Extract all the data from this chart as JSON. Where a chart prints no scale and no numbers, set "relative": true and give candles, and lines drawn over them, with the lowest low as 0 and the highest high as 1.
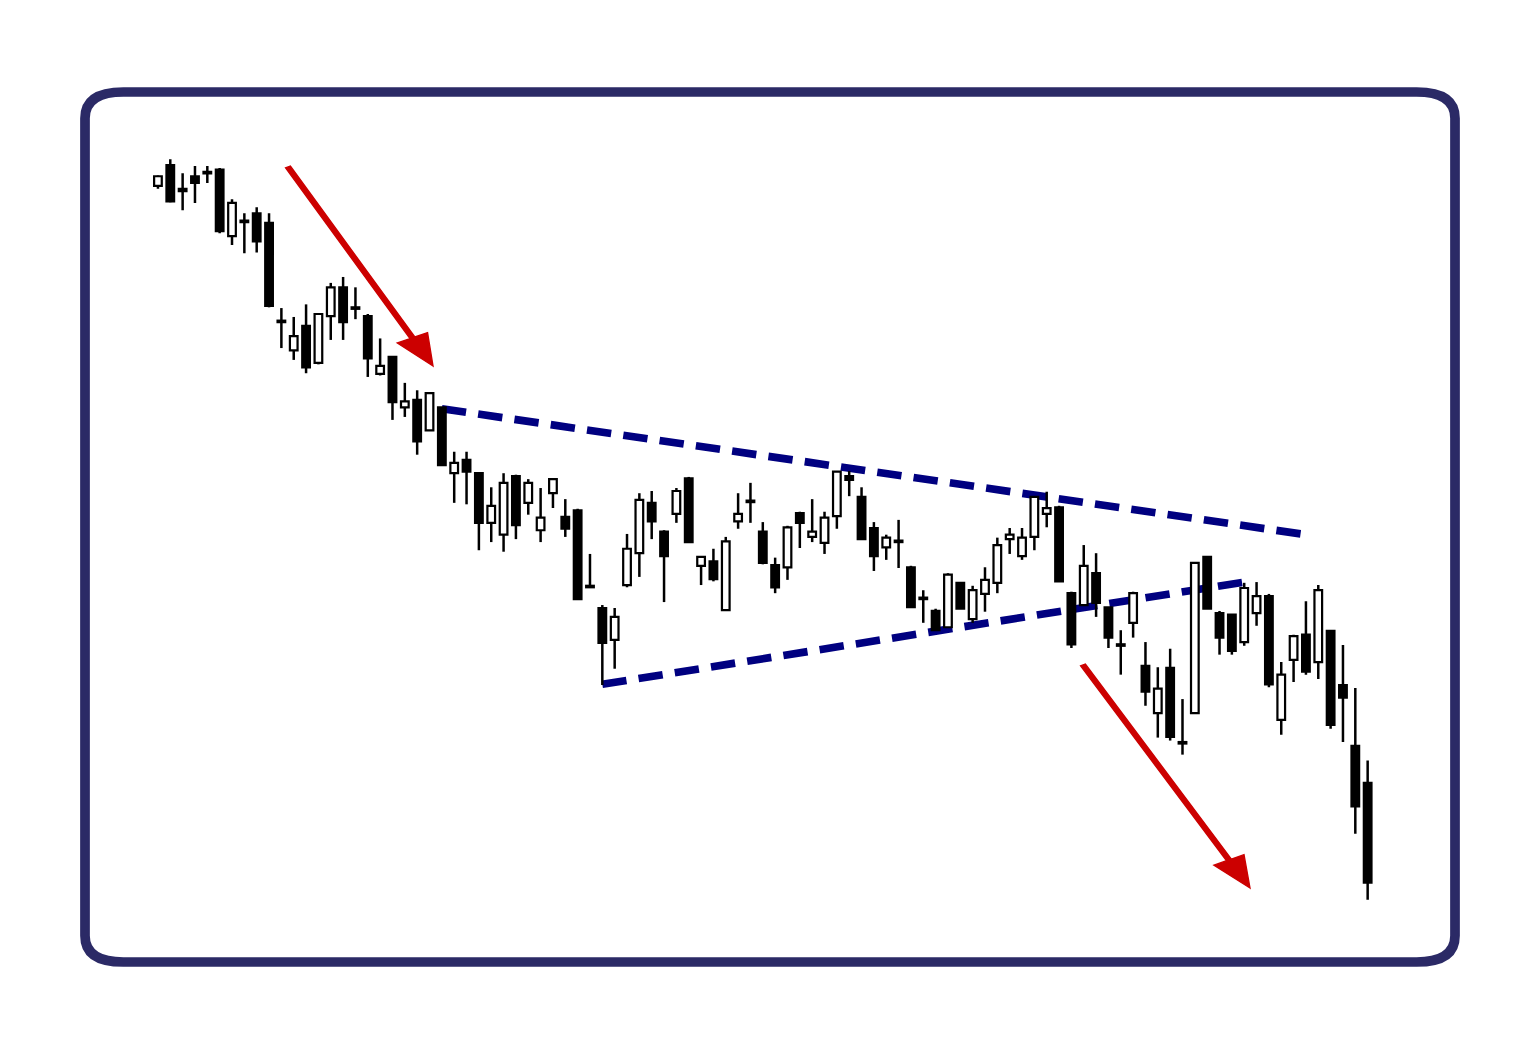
{
  "chart_data": {
    "type": "candlestick",
    "relative": true,
    "tick_labels": false,
    "legend": false,
    "categories": [
      null,
      null,
      null,
      null,
      null,
      null,
      null,
      null,
      null,
      null,
      null,
      null,
      null,
      null,
      null,
      null,
      null,
      null,
      null,
      null,
      null,
      null,
      null,
      null,
      null,
      null,
      null,
      null,
      null,
      null,
      null,
      null,
      null,
      null,
      null,
      null,
      null,
      null,
      null,
      null,
      null,
      null,
      null,
      null,
      null,
      null,
      null,
      null,
      null,
      null,
      null,
      null,
      null,
      null,
      null,
      null,
      null,
      null,
      null,
      null,
      null,
      null,
      null,
      null,
      null,
      null,
      null,
      null,
      null,
      null,
      null,
      null,
      null,
      null,
      null,
      null,
      null,
      null,
      null,
      null,
      null,
      null,
      null,
      null,
      null,
      null,
      null,
      null,
      null,
      null,
      null,
      null,
      null,
      null,
      null,
      null,
      null,
      null,
      null
    ],
    "ohlc": [
      [
        0.964,
        0.978,
        0.96,
        0.977
      ],
      [
        0.992,
        1.0,
        0.942,
        0.943
      ],
      [
        0.96,
        0.981,
        0.931,
        0.957
      ],
      [
        0.977,
        0.991,
        0.941,
        0.968
      ],
      [
        0.981,
        0.991,
        0.968,
        0.982
      ],
      [
        0.986,
        0.988,
        0.9,
        0.903
      ],
      [
        0.896,
        0.946,
        0.884,
        0.941
      ],
      [
        0.915,
        0.927,
        0.873,
        0.916
      ],
      [
        0.927,
        0.935,
        0.874,
        0.889
      ],
      [
        0.914,
        0.927,
        0.8,
        0.802
      ],
      [
        0.781,
        0.799,
        0.745,
        0.78
      ],
      [
        0.742,
        0.787,
        0.729,
        0.761
      ],
      [
        0.775,
        0.804,
        0.711,
        0.719
      ],
      [
        0.725,
        0.791,
        0.723,
        0.791
      ],
      [
        0.788,
        0.833,
        0.756,
        0.827
      ],
      [
        0.827,
        0.841,
        0.756,
        0.78
      ],
      [
        0.799,
        0.827,
        0.784,
        0.798
      ],
      [
        0.788,
        0.791,
        0.706,
        0.731
      ],
      [
        0.71,
        0.758,
        0.708,
        0.721
      ],
      [
        0.733,
        0.734,
        0.648,
        0.672
      ],
      [
        0.665,
        0.698,
        0.652,
        0.673
      ],
      [
        0.675,
        0.688,
        0.601,
        0.619
      ],
      [
        0.634,
        0.684,
        0.634,
        0.684
      ],
      [
        0.665,
        0.665,
        0.587,
        0.587
      ],
      [
        0.576,
        0.605,
        0.536,
        0.59
      ],
      [
        0.594,
        0.605,
        0.534,
        0.578
      ],
      [
        0.576,
        0.576,
        0.472,
        0.509
      ],
      [
        0.509,
        0.557,
        0.483,
        0.532
      ],
      [
        0.493,
        0.576,
        0.47,
        0.563
      ],
      [
        0.572,
        0.574,
        0.487,
        0.506
      ],
      [
        0.536,
        0.568,
        0.52,
        0.563
      ],
      [
        0.499,
        0.556,
        0.483,
        0.516
      ],
      [
        0.549,
        0.569,
        0.529,
        0.568
      ],
      [
        0.517,
        0.541,
        0.49,
        0.501
      ],
      [
        0.526,
        0.528,
        0.406,
        0.406
      ],
      [
        0.424,
        0.467,
        0.422,
        0.422
      ],
      [
        0.394,
        0.398,
        0.29,
        0.347
      ],
      [
        0.351,
        0.394,
        0.312,
        0.382
      ],
      [
        0.425,
        0.494,
        0.422,
        0.474
      ],
      [
        0.468,
        0.549,
        0.436,
        0.54
      ],
      [
        0.536,
        0.552,
        0.487,
        0.511
      ],
      [
        0.497,
        0.499,
        0.402,
        0.464
      ],
      [
        0.521,
        0.556,
        0.509,
        0.552
      ],
      [
        0.569,
        0.571,
        0.482,
        0.483
      ],
      [
        0.451,
        0.463,
        0.425,
        0.463
      ],
      [
        0.457,
        0.474,
        0.43,
        0.433
      ],
      [
        0.391,
        0.49,
        0.39,
        0.484
      ],
      [
        0.511,
        0.549,
        0.501,
        0.521
      ],
      [
        0.537,
        0.563,
        0.509,
        0.538
      ],
      [
        0.497,
        0.51,
        0.453,
        0.455
      ],
      [
        0.452,
        0.462,
        0.414,
        0.422
      ],
      [
        0.449,
        0.505,
        0.432,
        0.503
      ],
      [
        0.522,
        0.524,
        0.475,
        0.509
      ],
      [
        0.49,
        0.541,
        0.483,
        0.497
      ],
      [
        0.482,
        0.524,
        0.467,
        0.516
      ],
      [
        0.518,
        0.579,
        0.501,
        0.578
      ],
      [
        0.572,
        0.579,
        0.545,
        0.567
      ],
      [
        0.544,
        0.557,
        0.487,
        0.487
      ],
      [
        0.502,
        0.51,
        0.444,
        0.464
      ],
      [
        0.476,
        0.493,
        0.459,
        0.489
      ],
      [
        0.484,
        0.513,
        0.448,
        0.483
      ],
      [
        0.449,
        0.451,
        0.395,
        0.395
      ],
      [
        0.408,
        0.418,
        0.374,
        0.406
      ],
      [
        0.39,
        0.393,
        0.364,
        0.364
      ],
      [
        0.368,
        0.441,
        0.368,
        0.439
      ],
      [
        0.428,
        0.428,
        0.393,
        0.393
      ],
      [
        0.379,
        0.424,
        0.374,
        0.418
      ],
      [
        0.413,
        0.449,
        0.389,
        0.432
      ],
      [
        0.428,
        0.489,
        0.414,
        0.479
      ],
      [
        0.487,
        0.502,
        0.467,
        0.493
      ],
      [
        0.464,
        0.502,
        0.459,
        0.489
      ],
      [
        0.49,
        0.544,
        0.472,
        0.544
      ],
      [
        0.521,
        0.551,
        0.503,
        0.529
      ],
      [
        0.53,
        0.532,
        0.43,
        0.43
      ],
      [
        0.414,
        0.416,
        0.34,
        0.345
      ],
      [
        0.398,
        0.479,
        0.398,
        0.451
      ],
      [
        0.441,
        0.468,
        0.382,
        0.401
      ],
      [
        0.395,
        0.395,
        0.34,
        0.354
      ],
      [
        0.344,
        0.364,
        0.304,
        0.343
      ],
      [
        0.374,
        0.416,
        0.354,
        0.414
      ],
      [
        0.316,
        0.348,
        0.262,
        0.281
      ],
      [
        0.252,
        0.314,
        0.219,
        0.285
      ],
      [
        0.313,
        0.339,
        0.215,
        0.22
      ],
      [
        0.212,
        0.271,
        0.196,
        0.211
      ],
      [
        0.252,
        0.455,
        0.252,
        0.455
      ],
      [
        0.463,
        0.463,
        0.393,
        0.393
      ],
      [
        0.387,
        0.39,
        0.331,
        0.354
      ],
      [
        0.385,
        0.385,
        0.331,
        0.336
      ],
      [
        0.348,
        0.428,
        0.343,
        0.421
      ],
      [
        0.387,
        0.429,
        0.37,
        0.41
      ],
      [
        0.41,
        0.413,
        0.287,
        0.291
      ],
      [
        0.243,
        0.321,
        0.223,
        0.304
      ],
      [
        0.324,
        0.358,
        0.294,
        0.356
      ],
      [
        0.358,
        0.403,
        0.304,
        0.308
      ],
      [
        0.321,
        0.425,
        0.298,
        0.418
      ],
      [
        0.363,
        0.364,
        0.231,
        0.236
      ],
      [
        0.29,
        0.344,
        0.213,
        0.273
      ],
      [
        0.208,
        0.286,
        0.089,
        0.126
      ],
      [
        0.158,
        0.188,
        0.0,
        0.023
      ]
    ],
    "series": [
      {
        "type": "line",
        "values": [
          null,
          null,
          null,
          null,
          null,
          null,
          null,
          null,
          null,
          null,
          null,
          null,
          null,
          null,
          null,
          null,
          null,
          null,
          null,
          null,
          null,
          null,
          null,
          0.663,
          null,
          null,
          null,
          null,
          null,
          null,
          null,
          null,
          null,
          null,
          null,
          null,
          null,
          null,
          null,
          null,
          null,
          null,
          null,
          null,
          null,
          null,
          null,
          null,
          null,
          null,
          null,
          null,
          null,
          null,
          null,
          null,
          null,
          null,
          null,
          null,
          null,
          null,
          null,
          null,
          null,
          null,
          null,
          null,
          null,
          null,
          null,
          null,
          null,
          null,
          null,
          null,
          null,
          null,
          null,
          null,
          null,
          null,
          null,
          null,
          null,
          null,
          null,
          null,
          null,
          null,
          null,
          null,
          null,
          0.493,
          null,
          null,
          null,
          null,
          null
        ],
        "color": "#000080",
        "line_style": "dashed"
      },
      {
        "type": "line",
        "values": [
          null,
          null,
          null,
          null,
          null,
          null,
          null,
          null,
          null,
          null,
          null,
          null,
          null,
          null,
          null,
          null,
          null,
          null,
          null,
          null,
          null,
          null,
          null,
          null,
          null,
          null,
          null,
          null,
          null,
          null,
          null,
          null,
          null,
          null,
          null,
          null,
          0.291,
          null,
          null,
          null,
          null,
          null,
          null,
          null,
          null,
          null,
          null,
          null,
          null,
          null,
          null,
          null,
          null,
          null,
          null,
          null,
          null,
          null,
          null,
          null,
          null,
          null,
          null,
          null,
          null,
          null,
          null,
          null,
          null,
          null,
          null,
          null,
          null,
          null,
          null,
          null,
          null,
          null,
          null,
          null,
          null,
          null,
          null,
          null,
          null,
          null,
          null,
          null,
          0.429,
          null,
          null,
          null,
          null,
          null,
          null,
          null,
          null,
          null,
          null
        ],
        "color": "#000080",
        "line_style": "dashed"
      }
    ]
  }
}
